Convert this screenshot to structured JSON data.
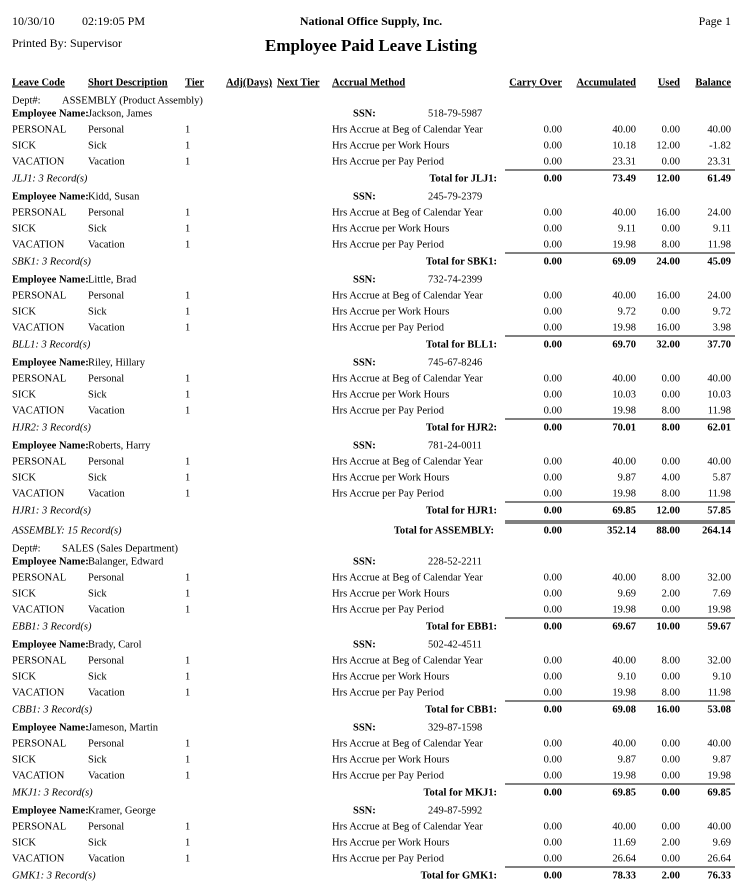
{
  "header": {
    "date": "10/30/10",
    "time": "02:19:05 PM",
    "company": "National Office Supply, Inc.",
    "page": "Page 1",
    "printed_by": "Printed By: Supervisor",
    "title": "Employee Paid Leave Listing"
  },
  "columns": [
    "Leave Code",
    "Short Description",
    "Tier",
    "Adj(Days)",
    "Next Tier",
    "Accrual Method",
    "Carry Over",
    "Accumulated",
    "Used",
    "Balance"
  ],
  "labels": {
    "dept": "Dept#:",
    "employee": "Employee Name:",
    "ssn": "SSN:"
  },
  "departments": [
    {
      "name": "ASSEMBLY (Product Assembly)",
      "employees": [
        {
          "name": "Jackson, James",
          "ssn": "518-79-5987",
          "rows": [
            [
              "PERSONAL",
              "Personal",
              "1",
              "Hrs Accrue at Beg of Calendar Year",
              "0.00",
              "40.00",
              "0.00",
              "40.00"
            ],
            [
              "SICK",
              "Sick",
              "1",
              "Hrs Accrue per Work Hours",
              "0.00",
              "10.18",
              "12.00",
              "-1.82"
            ],
            [
              "VACATION",
              "Vacation",
              "1",
              "Hrs Accrue per Pay Period",
              "0.00",
              "23.31",
              "0.00",
              "23.31"
            ]
          ],
          "records": "JLJ1: 3 Record(s)",
          "total_label": "Total for JLJ1:",
          "totals": [
            "0.00",
            "73.49",
            "12.00",
            "61.49"
          ]
        },
        {
          "name": "Kidd, Susan",
          "ssn": "245-79-2379",
          "rows": [
            [
              "PERSONAL",
              "Personal",
              "1",
              "Hrs Accrue at Beg of Calendar Year",
              "0.00",
              "40.00",
              "16.00",
              "24.00"
            ],
            [
              "SICK",
              "Sick",
              "1",
              "Hrs Accrue per Work Hours",
              "0.00",
              "9.11",
              "0.00",
              "9.11"
            ],
            [
              "VACATION",
              "Vacation",
              "1",
              "Hrs Accrue per Pay Period",
              "0.00",
              "19.98",
              "8.00",
              "11.98"
            ]
          ],
          "records": "SBK1: 3 Record(s)",
          "total_label": "Total for SBK1:",
          "totals": [
            "0.00",
            "69.09",
            "24.00",
            "45.09"
          ]
        },
        {
          "name": "Little, Brad",
          "ssn": "732-74-2399",
          "rows": [
            [
              "PERSONAL",
              "Personal",
              "1",
              "Hrs Accrue at Beg of Calendar Year",
              "0.00",
              "40.00",
              "16.00",
              "24.00"
            ],
            [
              "SICK",
              "Sick",
              "1",
              "Hrs Accrue per Work Hours",
              "0.00",
              "9.72",
              "0.00",
              "9.72"
            ],
            [
              "VACATION",
              "Vacation",
              "1",
              "Hrs Accrue per Pay Period",
              "0.00",
              "19.98",
              "16.00",
              "3.98"
            ]
          ],
          "records": "BLL1: 3 Record(s)",
          "total_label": "Total for BLL1:",
          "totals": [
            "0.00",
            "69.70",
            "32.00",
            "37.70"
          ]
        },
        {
          "name": "Riley, Hillary",
          "ssn": "745-67-8246",
          "rows": [
            [
              "PERSONAL",
              "Personal",
              "1",
              "Hrs Accrue at Beg of Calendar Year",
              "0.00",
              "40.00",
              "0.00",
              "40.00"
            ],
            [
              "SICK",
              "Sick",
              "1",
              "Hrs Accrue per Work Hours",
              "0.00",
              "10.03",
              "0.00",
              "10.03"
            ],
            [
              "VACATION",
              "Vacation",
              "1",
              "Hrs Accrue per Pay Period",
              "0.00",
              "19.98",
              "8.00",
              "11.98"
            ]
          ],
          "records": "HJR2: 3 Record(s)",
          "total_label": "Total for HJR2:",
          "totals": [
            "0.00",
            "70.01",
            "8.00",
            "62.01"
          ]
        },
        {
          "name": "Roberts, Harry",
          "ssn": "781-24-0011",
          "rows": [
            [
              "PERSONAL",
              "Personal",
              "1",
              "Hrs Accrue at Beg of Calendar Year",
              "0.00",
              "40.00",
              "0.00",
              "40.00"
            ],
            [
              "SICK",
              "Sick",
              "1",
              "Hrs Accrue per Work Hours",
              "0.00",
              "9.87",
              "4.00",
              "5.87"
            ],
            [
              "VACATION",
              "Vacation",
              "1",
              "Hrs Accrue per Pay Period",
              "0.00",
              "19.98",
              "8.00",
              "11.98"
            ]
          ],
          "records": "HJR1: 3 Record(s)",
          "total_label": "Total for HJR1:",
          "totals": [
            "0.00",
            "69.85",
            "12.00",
            "57.85"
          ]
        }
      ],
      "records": "ASSEMBLY: 15 Record(s)",
      "total_label": "Total for ASSEMBLY:",
      "totals": [
        "0.00",
        "352.14",
        "88.00",
        "264.14"
      ]
    },
    {
      "name": "SALES (Sales Department)",
      "employees": [
        {
          "name": "Balanger, Edward",
          "ssn": "228-52-2211",
          "rows": [
            [
              "PERSONAL",
              "Personal",
              "1",
              "Hrs Accrue at Beg of Calendar Year",
              "0.00",
              "40.00",
              "8.00",
              "32.00"
            ],
            [
              "SICK",
              "Sick",
              "1",
              "Hrs Accrue per Work Hours",
              "0.00",
              "9.69",
              "2.00",
              "7.69"
            ],
            [
              "VACATION",
              "Vacation",
              "1",
              "Hrs Accrue per Pay Period",
              "0.00",
              "19.98",
              "0.00",
              "19.98"
            ]
          ],
          "records": "EBB1: 3 Record(s)",
          "total_label": "Total for EBB1:",
          "totals": [
            "0.00",
            "69.67",
            "10.00",
            "59.67"
          ]
        },
        {
          "name": "Brady, Carol",
          "ssn": "502-42-4511",
          "rows": [
            [
              "PERSONAL",
              "Personal",
              "1",
              "Hrs Accrue at Beg of Calendar Year",
              "0.00",
              "40.00",
              "8.00",
              "32.00"
            ],
            [
              "SICK",
              "Sick",
              "1",
              "Hrs Accrue per Work Hours",
              "0.00",
              "9.10",
              "0.00",
              "9.10"
            ],
            [
              "VACATION",
              "Vacation",
              "1",
              "Hrs Accrue per Pay Period",
              "0.00",
              "19.98",
              "8.00",
              "11.98"
            ]
          ],
          "records": "CBB1: 3 Record(s)",
          "total_label": "Total for CBB1:",
          "totals": [
            "0.00",
            "69.08",
            "16.00",
            "53.08"
          ]
        },
        {
          "name": "Jameson, Martin",
          "ssn": "329-87-1598",
          "rows": [
            [
              "PERSONAL",
              "Personal",
              "1",
              "Hrs Accrue at Beg of Calendar Year",
              "0.00",
              "40.00",
              "0.00",
              "40.00"
            ],
            [
              "SICK",
              "Sick",
              "1",
              "Hrs Accrue per Work Hours",
              "0.00",
              "9.87",
              "0.00",
              "9.87"
            ],
            [
              "VACATION",
              "Vacation",
              "1",
              "Hrs Accrue per Pay Period",
              "0.00",
              "19.98",
              "0.00",
              "19.98"
            ]
          ],
          "records": "MKJ1: 3 Record(s)",
          "total_label": "Total for MKJ1:",
          "totals": [
            "0.00",
            "69.85",
            "0.00",
            "69.85"
          ]
        },
        {
          "name": "Kramer, George",
          "ssn": "249-87-5992",
          "rows": [
            [
              "PERSONAL",
              "Personal",
              "1",
              "Hrs Accrue at Beg of Calendar Year",
              "0.00",
              "40.00",
              "0.00",
              "40.00"
            ],
            [
              "SICK",
              "Sick",
              "1",
              "Hrs Accrue per Work Hours",
              "0.00",
              "11.69",
              "2.00",
              "9.69"
            ],
            [
              "VACATION",
              "Vacation",
              "1",
              "Hrs Accrue per Pay Period",
              "0.00",
              "26.64",
              "0.00",
              "26.64"
            ]
          ],
          "records": "GMK1: 3 Record(s)",
          "total_label": "Total for GMK1:",
          "totals": [
            "0.00",
            "78.33",
            "2.00",
            "76.33"
          ]
        }
      ]
    }
  ]
}
